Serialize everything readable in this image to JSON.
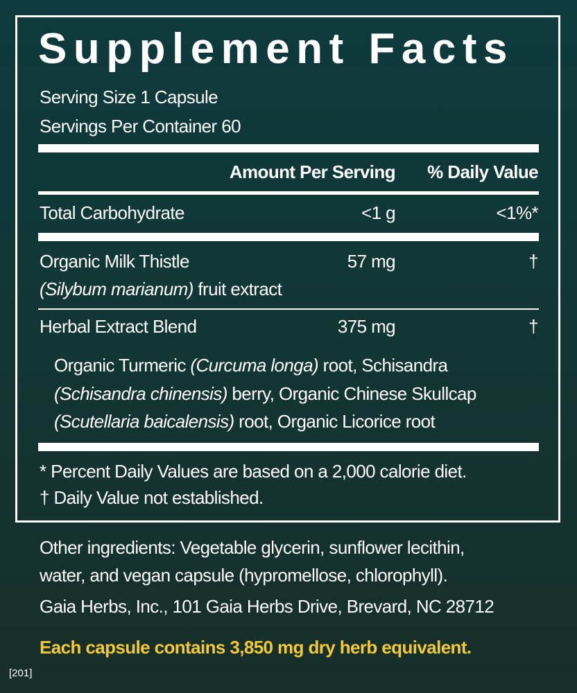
{
  "title": "Supplement Facts",
  "serving_size": "Serving Size 1 Capsule",
  "servings_per_container": "Servings Per Container 60",
  "header": {
    "amount": "Amount Per Serving",
    "daily_value": "% Daily Value"
  },
  "rows": [
    {
      "name": "Total Carbohydrate",
      "amount": "<1 g",
      "dv": "<1%*"
    },
    {
      "name": "Organic Milk Thistle",
      "latin": "(Silybum marianum)",
      "part": " fruit extract",
      "amount": "57 mg",
      "dv": "†"
    },
    {
      "name": "Herbal Extract Blend",
      "amount": "375 mg",
      "dv": "†"
    }
  ],
  "blend": {
    "l1a": "Organic Turmeric ",
    "l1b": "(Curcuma longa)",
    "l1c": " root, Schisandra",
    "l2a": "(Schisandra chinensis)",
    "l2b": " berry, Organic Chinese Skullcap",
    "l3a": "(Scutellaria baicalensis)",
    "l3b": " root, Organic Licorice root"
  },
  "footnotes": [
    "* Percent Daily Values are based on a 2,000 calorie diet.",
    "† Daily Value not established."
  ],
  "other_ingredients": [
    "Other ingredients: Vegetable glycerin, sunflower lecithin,",
    "water, and vegan capsule (hypromellose, chlorophyll)."
  ],
  "manufacturer": "Gaia Herbs, Inc., 101 Gaia Herbs Drive, Brevard, NC 28712",
  "herb_equivalent": "Each capsule contains 3,850 mg dry herb equivalent.",
  "code": "[201]",
  "colors": {
    "background": "#123634",
    "accent": "#f5c932",
    "text": "#ffffff"
  }
}
